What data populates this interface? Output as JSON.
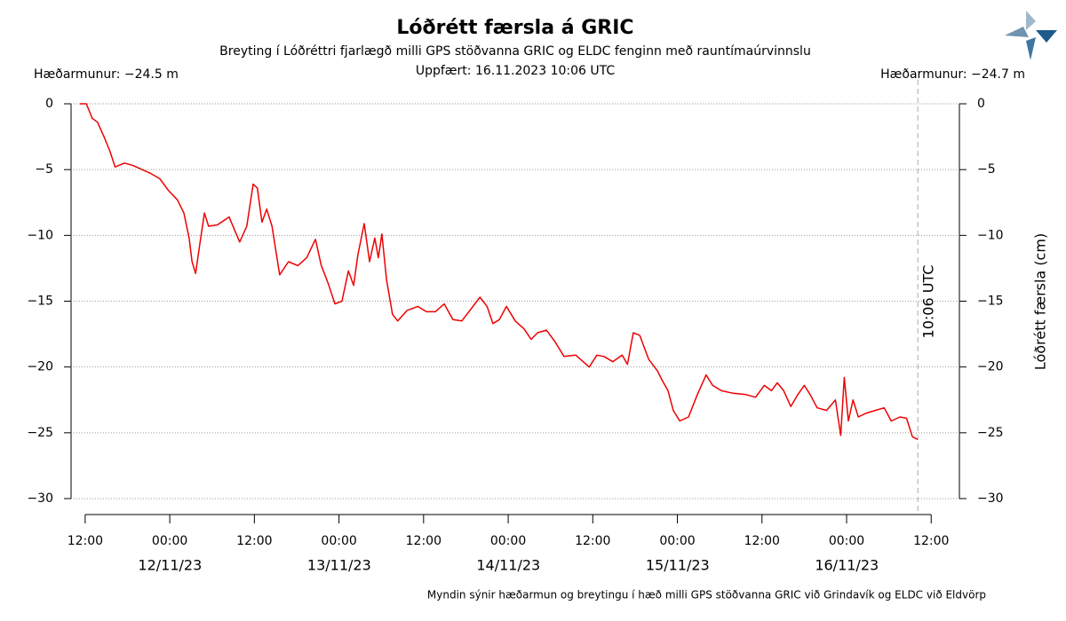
{
  "chart_data": {
    "type": "line",
    "title": "Lóðrétt færsla á GRIC",
    "subtitle": "Breyting í Lóðréttri fjarlægð milli GPS stöðvanna GRIC og ELDC fenginn með rauntímaúrvinnslu",
    "updated": "Uppfært: 16.11.2023 10:06 UTC",
    "left_note": "Hæðarmunur: −24.5 m",
    "right_note": "Hæðarmunur: −24.7 m",
    "y2_label": "Lóðrétt færsla (cm)",
    "footer": "Myndin sýnir hæðarmun og breytingu í hæð milli GPS stöðvanna GRIC við Grindavík og ELDC við Eldvörp",
    "annotation": {
      "x": "2023-11-16T10:06",
      "label": "10:06 UTC"
    },
    "color": "#ee0000",
    "grid": true,
    "xlim": [
      "2023-11-11T10:00",
      "2023-11-16T16:00"
    ],
    "xticks": [
      {
        "value": "2023-11-11T12:00",
        "label": "12:00"
      },
      {
        "value": "2023-11-12T00:00",
        "label": "00:00"
      },
      {
        "value": "2023-11-12T12:00",
        "label": "12:00"
      },
      {
        "value": "2023-11-13T00:00",
        "label": "00:00"
      },
      {
        "value": "2023-11-13T12:00",
        "label": "12:00"
      },
      {
        "value": "2023-11-14T00:00",
        "label": "00:00"
      },
      {
        "value": "2023-11-14T12:00",
        "label": "12:00"
      },
      {
        "value": "2023-11-15T00:00",
        "label": "00:00"
      },
      {
        "value": "2023-11-15T12:00",
        "label": "12:00"
      },
      {
        "value": "2023-11-16T00:00",
        "label": "00:00"
      },
      {
        "value": "2023-11-16T12:00",
        "label": "12:00"
      }
    ],
    "date_labels": [
      {
        "value": "2023-11-12T12:00",
        "label": "12/11/23"
      },
      {
        "value": "2023-11-13T12:00",
        "label": "13/11/23"
      },
      {
        "value": "2023-11-14T12:00",
        "label": "14/11/23"
      },
      {
        "value": "2023-11-15T12:00",
        "label": "15/11/23"
      },
      {
        "value": "2023-11-16T12:00",
        "label": "16/11/23"
      }
    ],
    "ylim": [
      -30,
      0
    ],
    "yticks": [
      0,
      {
        "value": -5,
        "label": "−5"
      },
      {
        "value": -10,
        "label": "−10"
      },
      {
        "value": -15,
        "label": "−15"
      },
      {
        "value": -20,
        "label": "−20"
      },
      {
        "value": -25,
        "label": "−25"
      },
      {
        "value": -30,
        "label": "−30"
      }
    ],
    "y2lim": [
      -30,
      0
    ],
    "y2ticks": [
      0,
      {
        "value": -5,
        "label": "−5"
      },
      {
        "value": -10,
        "label": "−10"
      },
      {
        "value": -15,
        "label": "−15"
      },
      {
        "value": -20,
        "label": "−20"
      },
      {
        "value": -25,
        "label": "−25"
      },
      {
        "value": -30,
        "label": "−30"
      }
    ],
    "x": [
      "2023-11-11T11:15",
      "2023-11-11T12:10",
      "2023-11-11T13:00",
      "2023-11-11T13:45",
      "2023-11-11T14:45",
      "2023-11-11T15:30",
      "2023-11-11T16:15",
      "2023-11-11T17:35",
      "2023-11-11T18:50",
      "2023-11-11T20:05",
      "2023-11-11T21:20",
      "2023-11-11T22:35",
      "2023-11-11T23:50",
      "2023-11-12T01:05",
      "2023-11-12T02:00",
      "2023-11-12T02:45",
      "2023-11-12T03:10",
      "2023-11-12T03:40",
      "2023-11-12T04:10",
      "2023-11-12T04:55",
      "2023-11-12T05:30",
      "2023-11-12T06:45",
      "2023-11-12T08:25",
      "2023-11-12T09:55",
      "2023-11-12T10:55",
      "2023-11-12T11:50",
      "2023-11-12T12:25",
      "2023-11-12T13:05",
      "2023-11-12T13:45",
      "2023-11-12T14:30",
      "2023-11-12T15:35",
      "2023-11-12T16:50",
      "2023-11-12T18:10",
      "2023-11-12T19:25",
      "2023-11-12T20:40",
      "2023-11-12T21:30",
      "2023-11-12T22:30",
      "2023-11-12T23:25",
      "2023-11-13T00:25",
      "2023-11-13T01:20",
      "2023-11-13T02:05",
      "2023-11-13T02:40",
      "2023-11-13T03:35",
      "2023-11-13T04:20",
      "2023-11-13T05:05",
      "2023-11-13T05:35",
      "2023-11-13T06:05",
      "2023-11-13T06:45",
      "2023-11-13T07:35",
      "2023-11-13T08:20",
      "2023-11-13T09:40",
      "2023-11-13T11:10",
      "2023-11-13T12:25",
      "2023-11-13T13:40",
      "2023-11-13T14:55",
      "2023-11-13T16:10",
      "2023-11-13T17:25",
      "2023-11-13T18:25",
      "2023-11-13T20:00",
      "2023-11-13T21:00",
      "2023-11-13T21:50",
      "2023-11-13T22:45",
      "2023-11-13T23:45",
      "2023-11-14T01:00",
      "2023-11-14T02:15",
      "2023-11-14T03:15",
      "2023-11-14T04:10",
      "2023-11-14T05:25",
      "2023-11-14T06:40",
      "2023-11-14T07:55",
      "2023-11-14T09:35",
      "2023-11-14T11:30",
      "2023-11-14T12:35",
      "2023-11-14T13:35",
      "2023-11-14T14:50",
      "2023-11-14T16:10",
      "2023-11-14T16:55",
      "2023-11-14T17:45",
      "2023-11-14T18:40",
      "2023-11-14T19:55",
      "2023-11-14T21:10",
      "2023-11-14T21:50",
      "2023-11-14T22:40",
      "2023-11-14T23:25",
      "2023-11-15T00:20",
      "2023-11-15T01:35",
      "2023-11-15T02:50",
      "2023-11-15T04:05",
      "2023-11-15T05:00",
      "2023-11-15T06:15",
      "2023-11-15T07:55",
      "2023-11-15T09:45",
      "2023-11-15T11:05",
      "2023-11-15T12:20",
      "2023-11-15T13:20",
      "2023-11-15T14:10",
      "2023-11-15T15:05",
      "2023-11-15T16:05",
      "2023-11-15T17:05",
      "2023-11-15T18:00",
      "2023-11-15T18:50",
      "2023-11-15T19:50",
      "2023-11-15T21:10",
      "2023-11-15T22:25",
      "2023-11-15T23:10",
      "2023-11-15T23:40",
      "2023-11-16T00:15",
      "2023-11-16T00:55",
      "2023-11-16T01:40",
      "2023-11-16T02:50",
      "2023-11-16T04:05",
      "2023-11-16T05:20",
      "2023-11-16T06:20",
      "2023-11-16T07:35",
      "2023-11-16T08:30",
      "2023-11-16T09:20",
      "2023-11-16T10:05"
    ],
    "values": [
      0,
      0,
      -1.1,
      -1.4,
      -2.6,
      -3.6,
      -4.8,
      -4.5,
      -4.7,
      -5.0,
      -5.3,
      -5.7,
      -6.6,
      -7.3,
      -8.3,
      -10.2,
      -12.0,
      -12.9,
      -11.0,
      -8.3,
      -9.3,
      -9.2,
      -8.6,
      -10.5,
      -9.3,
      -6.1,
      -6.4,
      -9.0,
      -8.0,
      -9.3,
      -13.0,
      -12.0,
      -12.3,
      -11.7,
      -10.3,
      -12.3,
      -13.7,
      -15.2,
      -15.0,
      -12.7,
      -13.8,
      -11.5,
      -9.1,
      -12.0,
      -10.2,
      -11.7,
      -9.9,
      -13.4,
      -16.0,
      -16.5,
      -15.7,
      -15.4,
      -15.8,
      -15.8,
      -15.2,
      -16.4,
      -16.5,
      -15.8,
      -14.7,
      -15.4,
      -16.7,
      -16.4,
      -15.4,
      -16.5,
      -17.1,
      -17.9,
      -17.4,
      -17.2,
      -18.1,
      -19.2,
      -19.1,
      -20.0,
      -19.1,
      -19.2,
      -19.6,
      -19.1,
      -19.8,
      -17.4,
      -17.6,
      -19.4,
      -20.3,
      -21.0,
      -21.8,
      -23.3,
      -24.1,
      -23.8,
      -22.1,
      -20.6,
      -21.4,
      -21.8,
      -22.0,
      -22.1,
      -22.3,
      -21.4,
      -21.8,
      -21.2,
      -21.8,
      -23.0,
      -22.1,
      -21.4,
      -22.1,
      -23.1,
      -23.3,
      -22.5,
      -25.2,
      -20.8,
      -24.1,
      -22.5,
      -23.8,
      -23.5,
      -23.3,
      -23.1,
      -24.1,
      -23.8,
      -23.9,
      -25.3,
      -25.5
    ]
  }
}
